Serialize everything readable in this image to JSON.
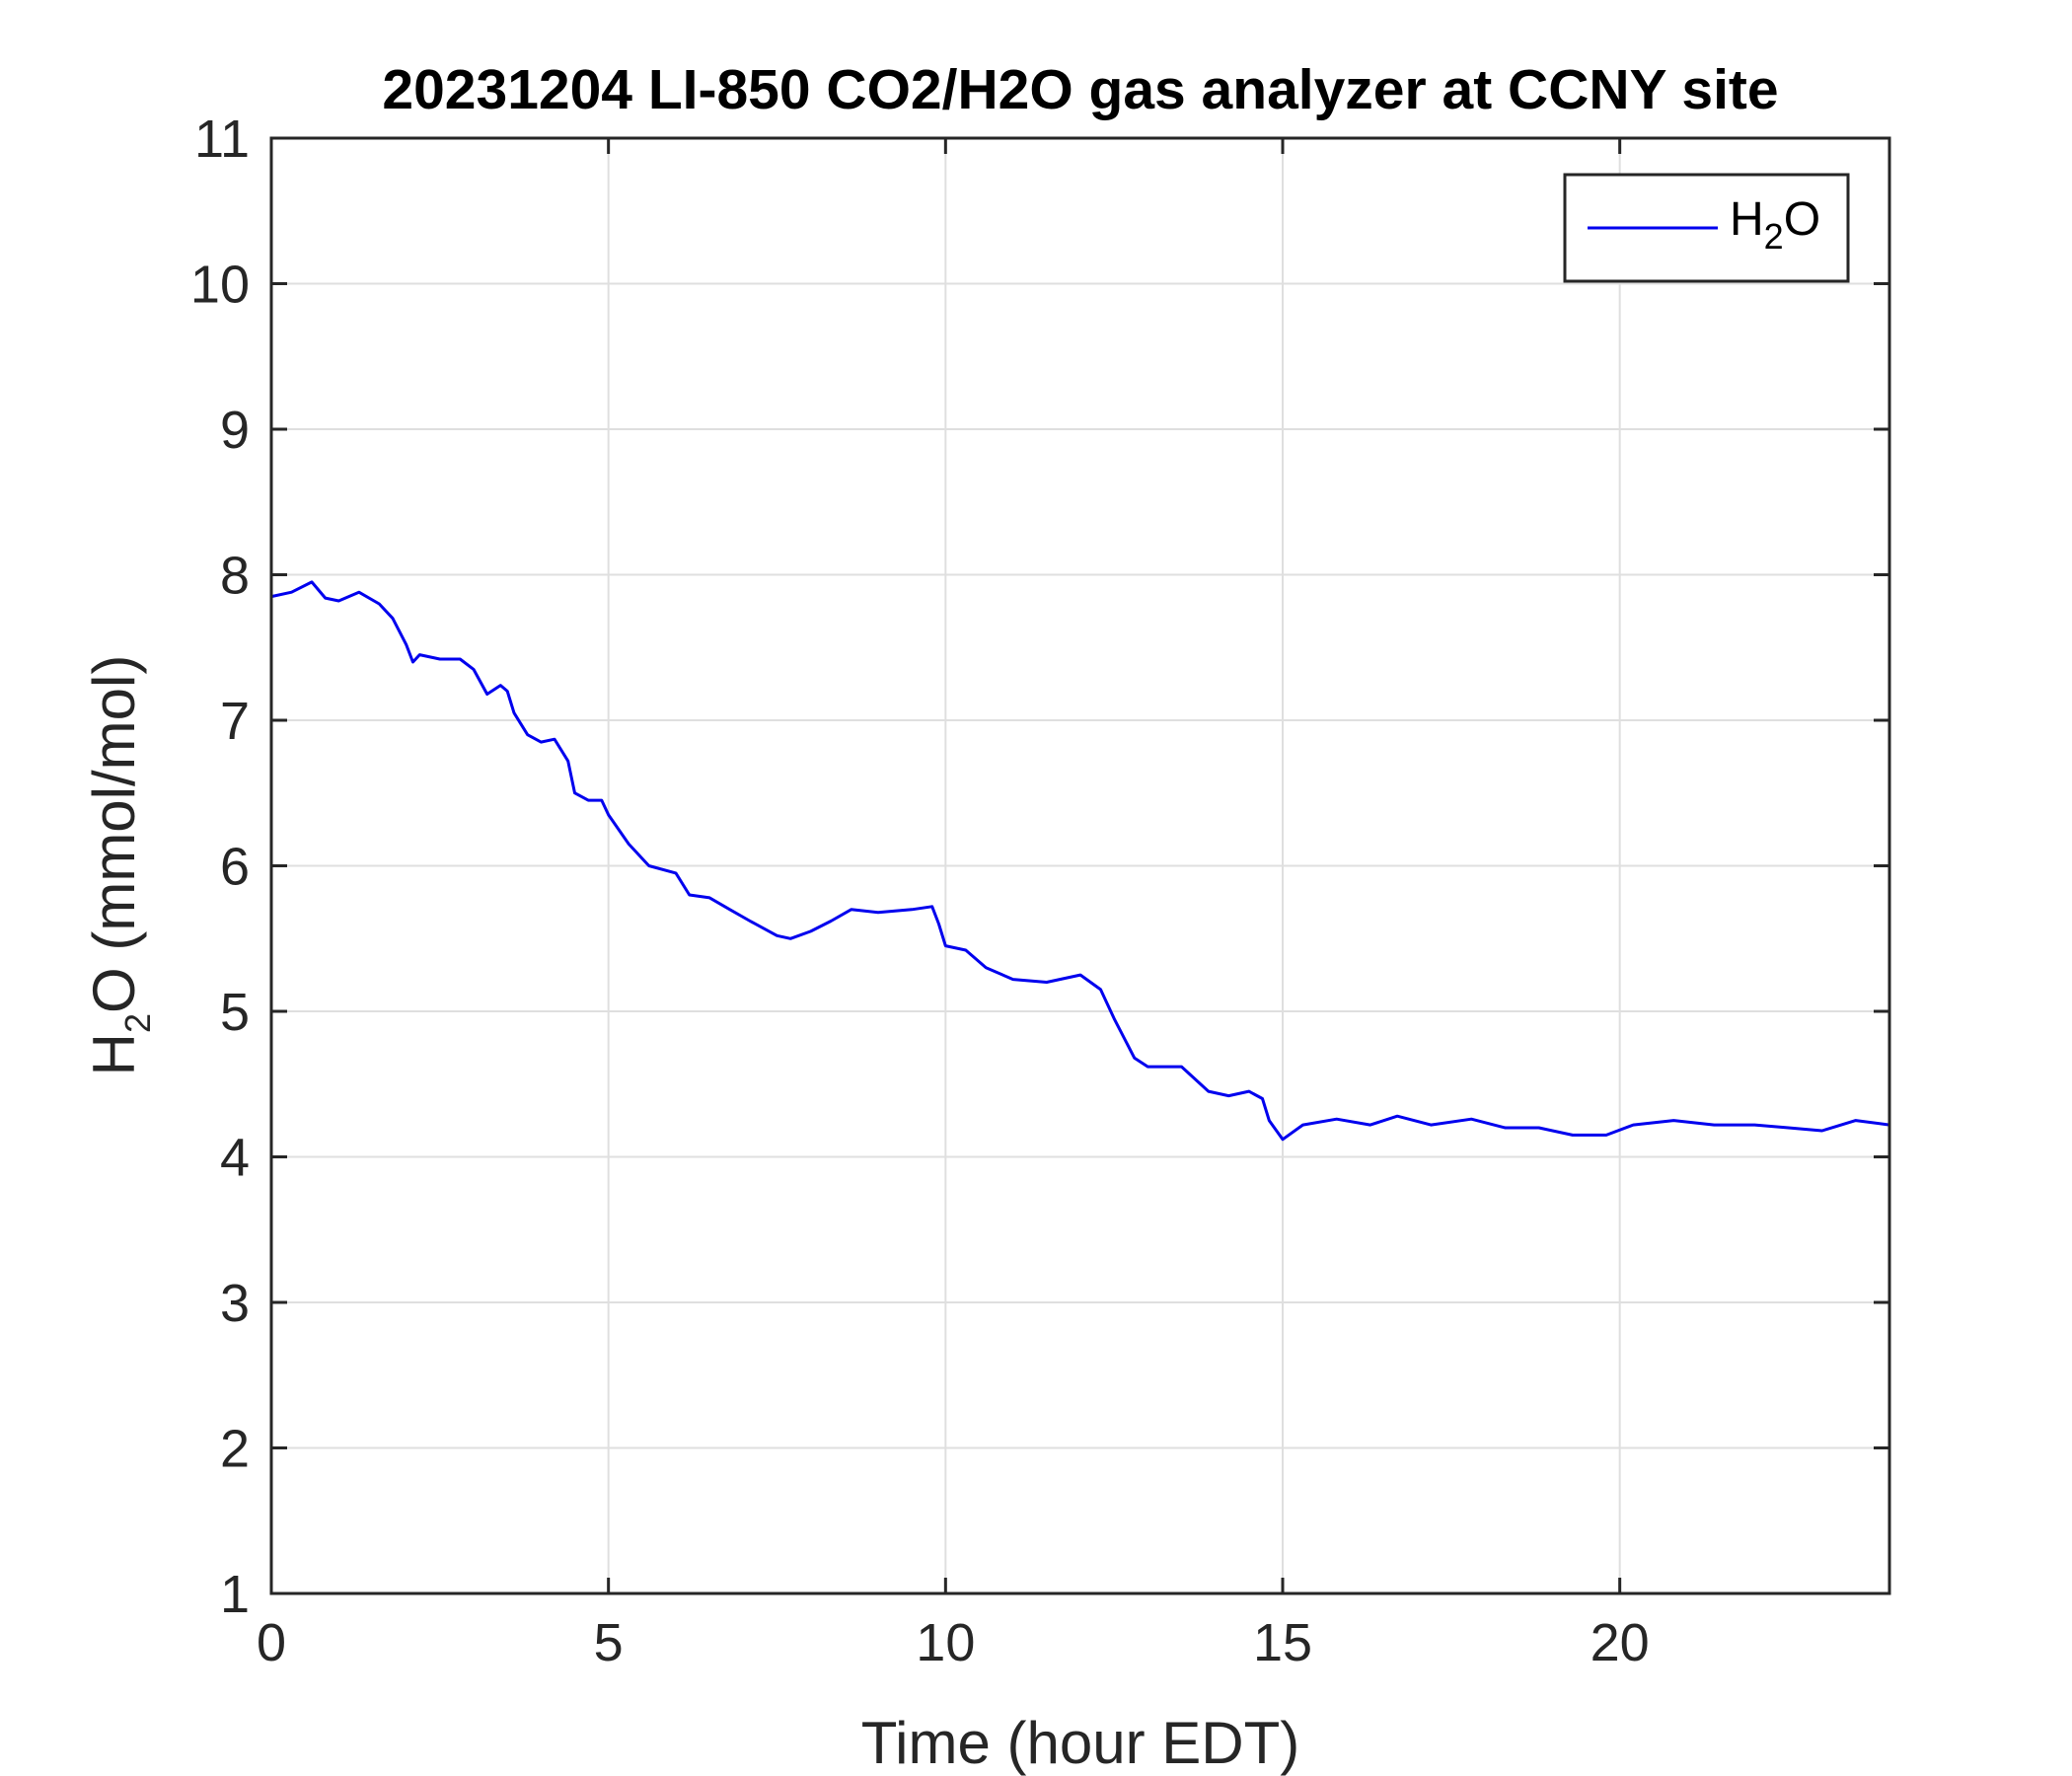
{
  "chart_data": {
    "type": "line",
    "title": "20231204 LI-850 CO2/H2O gas analyzer at CCNY site",
    "xlabel": "Time (hour EDT)",
    "ylabel": {
      "main": "H",
      "sub": "2",
      "rest": "O (mmol/mol)"
    },
    "xlim": [
      0,
      24
    ],
    "ylim": [
      1,
      11
    ],
    "xticks": [
      "0",
      "5",
      "10",
      "15",
      "20"
    ],
    "yticks": [
      "1",
      "2",
      "3",
      "4",
      "5",
      "6",
      "7",
      "8",
      "9",
      "10",
      "11"
    ],
    "grid": true,
    "legend_position": "top-right",
    "colors": {
      "series": "#0000ee",
      "grid": "#dfdfdf",
      "axis": "#262626"
    },
    "series": [
      {
        "name": {
          "main": "H",
          "sub": "2",
          "rest": "O"
        },
        "x": [
          0,
          0.3,
          0.6,
          0.8,
          1.0,
          1.3,
          1.6,
          1.8,
          2.0,
          2.1,
          2.2,
          2.5,
          2.8,
          3.0,
          3.2,
          3.4,
          3.5,
          3.6,
          3.8,
          4.0,
          4.2,
          4.4,
          4.5,
          4.7,
          4.9,
          5.0,
          5.3,
          5.6,
          6.0,
          6.2,
          6.5,
          6.8,
          7.1,
          7.5,
          7.7,
          8.0,
          8.3,
          8.6,
          9.0,
          9.5,
          9.8,
          9.9,
          10.0,
          10.3,
          10.6,
          11.0,
          11.5,
          12.0,
          12.3,
          12.5,
          12.8,
          13.0,
          13.5,
          13.9,
          14.2,
          14.5,
          14.7,
          14.8,
          15.0,
          15.3,
          15.8,
          16.3,
          16.7,
          17.2,
          17.8,
          18.3,
          18.8,
          19.3,
          19.8,
          20.2,
          20.8,
          21.4,
          22.0,
          22.5,
          23.0,
          23.5,
          24.0
        ],
        "y": [
          7.85,
          7.88,
          7.95,
          7.84,
          7.82,
          7.88,
          7.8,
          7.7,
          7.52,
          7.4,
          7.45,
          7.42,
          7.42,
          7.35,
          7.18,
          7.24,
          7.2,
          7.05,
          6.9,
          6.85,
          6.87,
          6.72,
          6.5,
          6.45,
          6.45,
          6.35,
          6.15,
          6.0,
          5.95,
          5.8,
          5.78,
          5.7,
          5.62,
          5.52,
          5.5,
          5.55,
          5.62,
          5.7,
          5.68,
          5.7,
          5.72,
          5.6,
          5.45,
          5.42,
          5.3,
          5.22,
          5.2,
          5.25,
          5.15,
          4.95,
          4.68,
          4.62,
          4.62,
          4.45,
          4.42,
          4.45,
          4.4,
          4.25,
          4.12,
          4.22,
          4.26,
          4.22,
          4.28,
          4.22,
          4.26,
          4.2,
          4.2,
          4.15,
          4.15,
          4.22,
          4.25,
          4.22,
          4.22,
          4.2,
          4.18,
          4.25,
          4.22
        ]
      }
    ]
  }
}
